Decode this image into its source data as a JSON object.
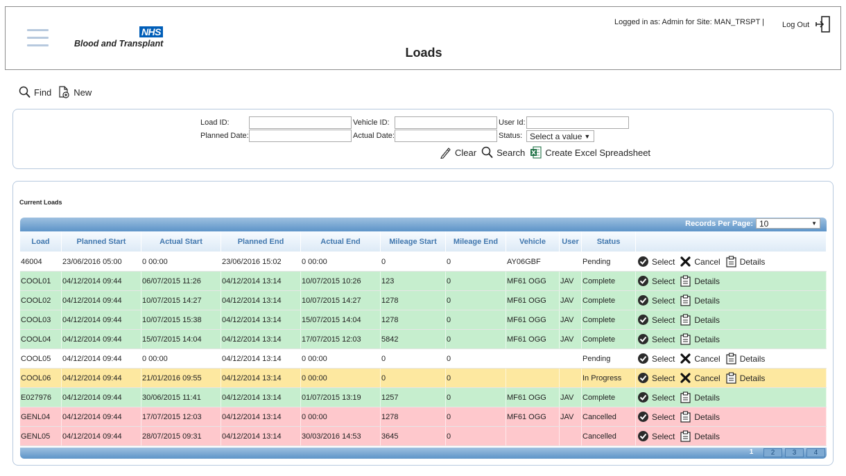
{
  "header": {
    "org_badge": "NHS",
    "org_name": "Blood and Transplant",
    "page_title": "Loads",
    "login_info": "Logged in as: Admin for Site: MAN_TRSPT |",
    "logout_label": "Log Out"
  },
  "toolbar": {
    "find_label": "Find",
    "new_label": "New"
  },
  "search": {
    "load_id_label": "Load ID:",
    "load_id_value": "",
    "vehicle_id_label": "Vehicle ID:",
    "vehicle_id_value": "",
    "user_id_label": "User Id:",
    "user_id_value": "",
    "planned_date_label": "Planned Date:",
    "planned_date_value": "",
    "actual_date_label": "Actual Date:",
    "actual_date_value": "",
    "status_label": "Status:",
    "status_value": "Select a value",
    "clear_label": "Clear",
    "search_label": "Search",
    "excel_label": "Create Excel Spreadsheet"
  },
  "results": {
    "title": "Current Loads",
    "records_per_page_label": "Records Per Page:",
    "records_per_page_value": "10",
    "columns": [
      "Load",
      "Planned Start",
      "Actual Start",
      "Planned End",
      "Actual End",
      "Mileage Start",
      "Mileage End",
      "Vehicle",
      "User",
      "Status",
      ""
    ],
    "action_labels": {
      "select": "Select",
      "cancel": "Cancel",
      "details": "Details"
    },
    "rows": [
      {
        "state": "pending",
        "cells": [
          "46004",
          "23/06/2016 05:00",
          "0 00:00",
          "23/06/2016 15:02",
          "0 00:00",
          "0",
          "0",
          "AY06GBF",
          "",
          "Pending"
        ],
        "actions": [
          "select",
          "cancel",
          "details"
        ]
      },
      {
        "state": "complete",
        "cells": [
          "COOL01",
          "04/12/2014 09:44",
          "06/07/2015 11:26",
          "04/12/2014 13:14",
          "10/07/2015 10:26",
          "123",
          "0",
          "MF61 OGG",
          "JAV",
          "Complete"
        ],
        "actions": [
          "select",
          "details"
        ]
      },
      {
        "state": "complete",
        "cells": [
          "COOL02",
          "04/12/2014 09:44",
          "10/07/2015 14:27",
          "04/12/2014 13:14",
          "10/07/2015 14:27",
          "1278",
          "0",
          "MF61 OGG",
          "JAV",
          "Complete"
        ],
        "actions": [
          "select",
          "details"
        ]
      },
      {
        "state": "complete",
        "cells": [
          "COOL03",
          "04/12/2014 09:44",
          "10/07/2015 15:38",
          "04/12/2014 13:14",
          "15/07/2015 14:04",
          "1278",
          "0",
          "MF61 OGG",
          "JAV",
          "Complete"
        ],
        "actions": [
          "select",
          "details"
        ]
      },
      {
        "state": "complete",
        "cells": [
          "COOL04",
          "04/12/2014 09:44",
          "15/07/2015 14:04",
          "04/12/2014 13:14",
          "17/07/2015 12:03",
          "5842",
          "0",
          "MF61 OGG",
          "JAV",
          "Complete"
        ],
        "actions": [
          "select",
          "details"
        ]
      },
      {
        "state": "pending",
        "cells": [
          "COOL05",
          "04/12/2014 09:44",
          "0 00:00",
          "04/12/2014 13:14",
          "0 00:00",
          "0",
          "0",
          "",
          "",
          "Pending"
        ],
        "actions": [
          "select",
          "cancel",
          "details"
        ]
      },
      {
        "state": "progress",
        "cells": [
          "COOL06",
          "04/12/2014 09:44",
          "21/01/2016 09:55",
          "04/12/2014 13:14",
          "0 00:00",
          "0",
          "0",
          "",
          "",
          "In Progress"
        ],
        "actions": [
          "select",
          "cancel",
          "details"
        ]
      },
      {
        "state": "complete",
        "cells": [
          "E027976",
          "04/12/2014 09:44",
          "30/06/2015 11:41",
          "04/12/2014 13:14",
          "01/07/2015 13:19",
          "1257",
          "0",
          "MF61 OGG",
          "JAV",
          "Complete"
        ],
        "actions": [
          "select",
          "details"
        ]
      },
      {
        "state": "cancelled",
        "cells": [
          "GENL04",
          "04/12/2014 09:44",
          "17/07/2015 12:03",
          "04/12/2014 13:14",
          "0 00:00",
          "1278",
          "0",
          "MF61 OGG",
          "JAV",
          "Cancelled"
        ],
        "actions": [
          "select",
          "details"
        ]
      },
      {
        "state": "cancelled",
        "cells": [
          "GENL05",
          "04/12/2014 09:44",
          "28/07/2015 09:31",
          "04/12/2014 13:14",
          "30/03/2016 14:53",
          "3645",
          "0",
          "",
          "",
          "Cancelled"
        ],
        "actions": [
          "select",
          "details"
        ]
      }
    ],
    "pages": [
      "1",
      "2",
      "3",
      "4"
    ],
    "current_page": "1"
  },
  "colors": {
    "complete_row": "#c6eece",
    "in_progress_row": "#fde8a0",
    "cancelled_row": "#fec8cc",
    "pending_row": "#ffffff",
    "header_text": "#4177ae",
    "grid_bar": "#5d94c8",
    "nhs_blue": "#005eb8"
  },
  "icons": {
    "menu": "hamburger-icon",
    "find": "magnifier-icon",
    "new": "new-document-icon",
    "clear": "pencil-icon",
    "search": "magnifier-icon",
    "excel": "excel-icon",
    "logout": "exit-door-icon",
    "select": "checkmark-circle-icon",
    "cancel": "x-icon",
    "details": "clipboard-icon"
  }
}
